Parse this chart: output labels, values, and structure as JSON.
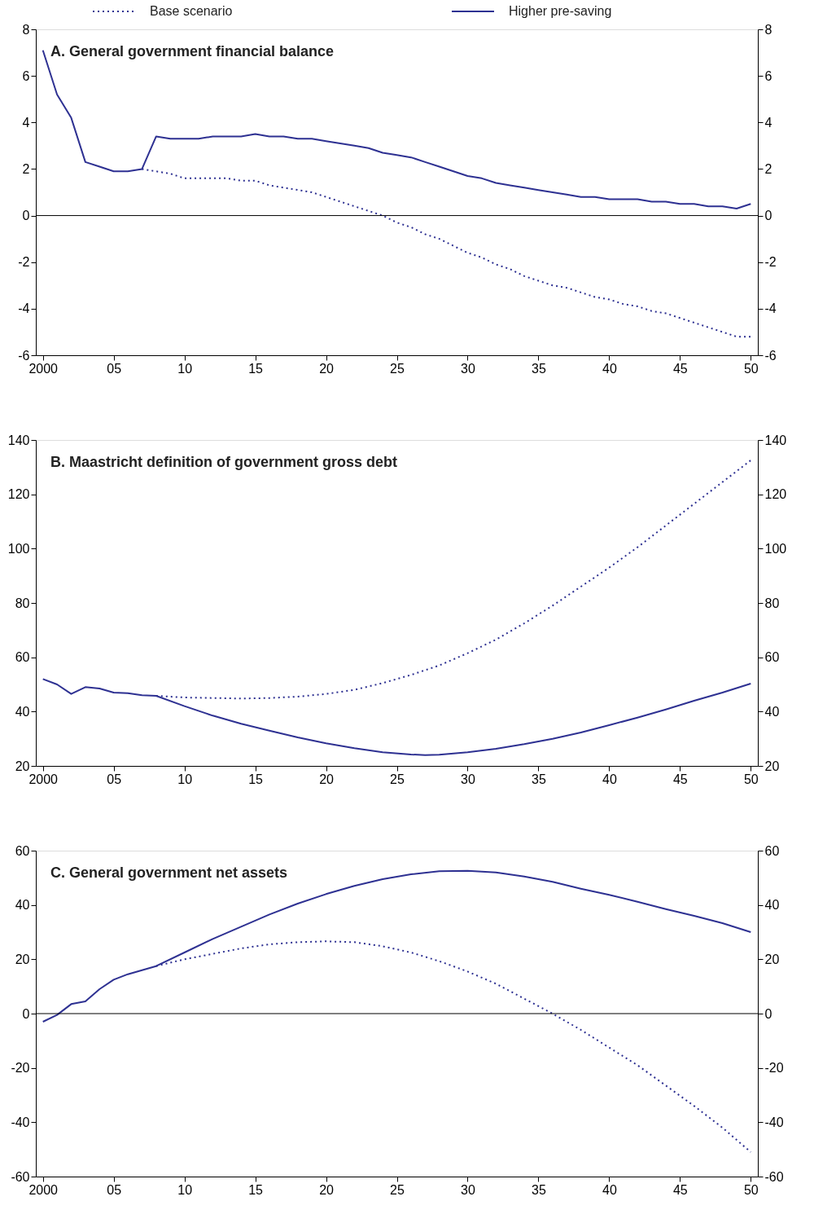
{
  "chart_data": [
    {
      "type": "line",
      "title": "A. General government financial balance",
      "legend": "top",
      "grid": false,
      "xlim": [
        1999.5,
        2050.5
      ],
      "xticks": [
        {
          "value": 2000,
          "label": "2000"
        },
        {
          "value": 2005,
          "label": "05"
        },
        {
          "value": 2010,
          "label": "10"
        },
        {
          "value": 2015,
          "label": "15"
        },
        {
          "value": 2020,
          "label": "20"
        },
        {
          "value": 2025,
          "label": "25"
        },
        {
          "value": 2030,
          "label": "30"
        },
        {
          "value": 2035,
          "label": "35"
        },
        {
          "value": 2040,
          "label": "40"
        },
        {
          "value": 2045,
          "label": "45"
        },
        {
          "value": 2050,
          "label": "50"
        }
      ],
      "ylim": [
        -6,
        8
      ],
      "yticks": [
        -6,
        -4,
        -2,
        0,
        2,
        4,
        6,
        8
      ],
      "y2lim": [
        -6,
        8
      ],
      "y2ticks": [
        -6,
        -4,
        -2,
        0,
        2,
        4,
        6,
        8
      ],
      "ref_lines": [
        {
          "axis": "y",
          "value": 0,
          "color": "#000000"
        }
      ],
      "series": [
        {
          "name": "Base scenario",
          "color": "#2e3192",
          "line_style": "dotted",
          "x": [
            2007,
            2008,
            2009,
            2010,
            2011,
            2012,
            2013,
            2014,
            2015,
            2016,
            2017,
            2018,
            2019,
            2020,
            2021,
            2022,
            2023,
            2024,
            2025,
            2026,
            2027,
            2028,
            2029,
            2030,
            2031,
            2032,
            2033,
            2034,
            2035,
            2036,
            2037,
            2038,
            2039,
            2040,
            2041,
            2042,
            2043,
            2044,
            2045,
            2046,
            2047,
            2048,
            2049,
            2050
          ],
          "values": [
            2.0,
            1.9,
            1.8,
            1.6,
            1.6,
            1.6,
            1.6,
            1.5,
            1.5,
            1.3,
            1.2,
            1.1,
            1.0,
            0.8,
            0.6,
            0.4,
            0.2,
            0.0,
            -0.3,
            -0.5,
            -0.8,
            -1.0,
            -1.3,
            -1.6,
            -1.8,
            -2.1,
            -2.3,
            -2.6,
            -2.8,
            -3.0,
            -3.1,
            -3.3,
            -3.5,
            -3.6,
            -3.8,
            -3.9,
            -4.1,
            -4.2,
            -4.4,
            -4.6,
            -4.8,
            -5.0,
            -5.2,
            -5.2
          ]
        },
        {
          "name": "Higher pre-saving",
          "color": "#2e3192",
          "line_style": "solid",
          "x": [
            2000,
            2001,
            2002,
            2003,
            2004,
            2005,
            2006,
            2007,
            2008,
            2009,
            2010,
            2011,
            2012,
            2013,
            2014,
            2015,
            2016,
            2017,
            2018,
            2019,
            2020,
            2021,
            2022,
            2023,
            2024,
            2025,
            2026,
            2027,
            2028,
            2029,
            2030,
            2031,
            2032,
            2033,
            2034,
            2035,
            2036,
            2037,
            2038,
            2039,
            2040,
            2041,
            2042,
            2043,
            2044,
            2045,
            2046,
            2047,
            2048,
            2049,
            2050
          ],
          "values": [
            7.1,
            5.2,
            4.2,
            2.3,
            2.1,
            1.9,
            1.9,
            2.0,
            3.4,
            3.3,
            3.3,
            3.3,
            3.4,
            3.4,
            3.4,
            3.5,
            3.4,
            3.4,
            3.3,
            3.3,
            3.2,
            3.1,
            3.0,
            2.9,
            2.7,
            2.6,
            2.5,
            2.3,
            2.1,
            1.9,
            1.7,
            1.6,
            1.4,
            1.3,
            1.2,
            1.1,
            1.0,
            0.9,
            0.8,
            0.8,
            0.7,
            0.7,
            0.7,
            0.6,
            0.6,
            0.5,
            0.5,
            0.4,
            0.4,
            0.3,
            0.5
          ]
        }
      ]
    },
    {
      "type": "line",
      "title": "B. Maastricht definition of government gross debt",
      "grid": false,
      "xlim": [
        1999.5,
        2050.5
      ],
      "xticks": [
        {
          "value": 2000,
          "label": "2000"
        },
        {
          "value": 2005,
          "label": "05"
        },
        {
          "value": 2010,
          "label": "10"
        },
        {
          "value": 2015,
          "label": "15"
        },
        {
          "value": 2020,
          "label": "20"
        },
        {
          "value": 2025,
          "label": "25"
        },
        {
          "value": 2030,
          "label": "30"
        },
        {
          "value": 2035,
          "label": "35"
        },
        {
          "value": 2040,
          "label": "40"
        },
        {
          "value": 2045,
          "label": "45"
        },
        {
          "value": 2050,
          "label": "50"
        }
      ],
      "ylim": [
        20,
        140
      ],
      "yticks": [
        20,
        40,
        60,
        80,
        100,
        120,
        140
      ],
      "y2lim": [
        20,
        140
      ],
      "y2ticks": [
        20,
        40,
        60,
        80,
        100,
        120,
        140
      ],
      "series": [
        {
          "color": "#2e3192",
          "line_style": "dotted",
          "x": [
            2008,
            2010,
            2012,
            2014,
            2016,
            2018,
            2020,
            2022,
            2024,
            2026,
            2028,
            2030,
            2032,
            2034,
            2036,
            2038,
            2040,
            2042,
            2044,
            2046,
            2048,
            2050
          ],
          "values": [
            45.8,
            45.2,
            45,
            44.8,
            45,
            45.5,
            46.5,
            48,
            50.5,
            53.5,
            57,
            61.5,
            66.5,
            72.5,
            79,
            86,
            93,
            100.5,
            108.5,
            116.5,
            124.5,
            132.5
          ]
        },
        {
          "color": "#2e3192",
          "line_style": "solid",
          "x": [
            2000,
            2001,
            2002,
            2003,
            2004,
            2005,
            2006,
            2007,
            2008,
            2010,
            2012,
            2014,
            2016,
            2018,
            2020,
            2022,
            2024,
            2026,
            2027,
            2028,
            2030,
            2032,
            2034,
            2036,
            2038,
            2040,
            2042,
            2044,
            2046,
            2048,
            2050
          ],
          "values": [
            52,
            50,
            46.5,
            49,
            48.5,
            47,
            46.8,
            46,
            45.8,
            42,
            38.5,
            35.5,
            33,
            30.5,
            28.3,
            26.5,
            25,
            24.2,
            24,
            24.1,
            25,
            26.3,
            28,
            30,
            32.3,
            35,
            37.8,
            40.8,
            44,
            47,
            50.3
          ]
        }
      ]
    },
    {
      "type": "line",
      "title": "C. General government net assets",
      "grid": false,
      "xlim": [
        1999.5,
        2050.5
      ],
      "xticks": [
        {
          "value": 2000,
          "label": "2000"
        },
        {
          "value": 2005,
          "label": "05"
        },
        {
          "value": 2010,
          "label": "10"
        },
        {
          "value": 2015,
          "label": "15"
        },
        {
          "value": 2020,
          "label": "20"
        },
        {
          "value": 2025,
          "label": "25"
        },
        {
          "value": 2030,
          "label": "30"
        },
        {
          "value": 2035,
          "label": "35"
        },
        {
          "value": 2040,
          "label": "40"
        },
        {
          "value": 2045,
          "label": "45"
        },
        {
          "value": 2050,
          "label": "50"
        }
      ],
      "ylim": [
        -60,
        60
      ],
      "yticks": [
        -60,
        -40,
        -20,
        0,
        20,
        40,
        60
      ],
      "y2lim": [
        -60,
        60
      ],
      "y2ticks": [
        -60,
        -40,
        -20,
        0,
        20,
        40,
        60
      ],
      "ref_lines": [
        {
          "axis": "y",
          "value": 0,
          "color": "#000000"
        }
      ],
      "series": [
        {
          "color": "#2e3192",
          "line_style": "dotted",
          "x": [
            2008,
            2010,
            2012,
            2014,
            2016,
            2018,
            2020,
            2022,
            2024,
            2026,
            2028,
            2030,
            2032,
            2034,
            2036,
            2038,
            2040,
            2042,
            2044,
            2046,
            2048,
            2050
          ],
          "values": [
            17.5,
            20,
            22,
            24,
            25.5,
            26.3,
            26.6,
            26.3,
            24.8,
            22.5,
            19.3,
            15.5,
            11,
            5.5,
            0,
            -6,
            -12.5,
            -19,
            -26.5,
            -34,
            -42,
            -51
          ]
        },
        {
          "color": "#2e3192",
          "line_style": "solid",
          "x": [
            2000,
            2001,
            2002,
            2003,
            2004,
            2005,
            2006,
            2007,
            2008,
            2010,
            2012,
            2014,
            2016,
            2018,
            2020,
            2022,
            2024,
            2026,
            2028,
            2030,
            2032,
            2034,
            2036,
            2038,
            2040,
            2042,
            2044,
            2046,
            2048,
            2050
          ],
          "values": [
            -3,
            -0.5,
            3.5,
            4.5,
            9,
            12.5,
            14.5,
            16,
            17.5,
            22.5,
            27.5,
            32,
            36.5,
            40.5,
            44,
            47,
            49.5,
            51.3,
            52.4,
            52.6,
            52,
            50.5,
            48.5,
            46,
            43.7,
            41.2,
            38.5,
            36,
            33.3,
            30
          ]
        }
      ]
    }
  ]
}
